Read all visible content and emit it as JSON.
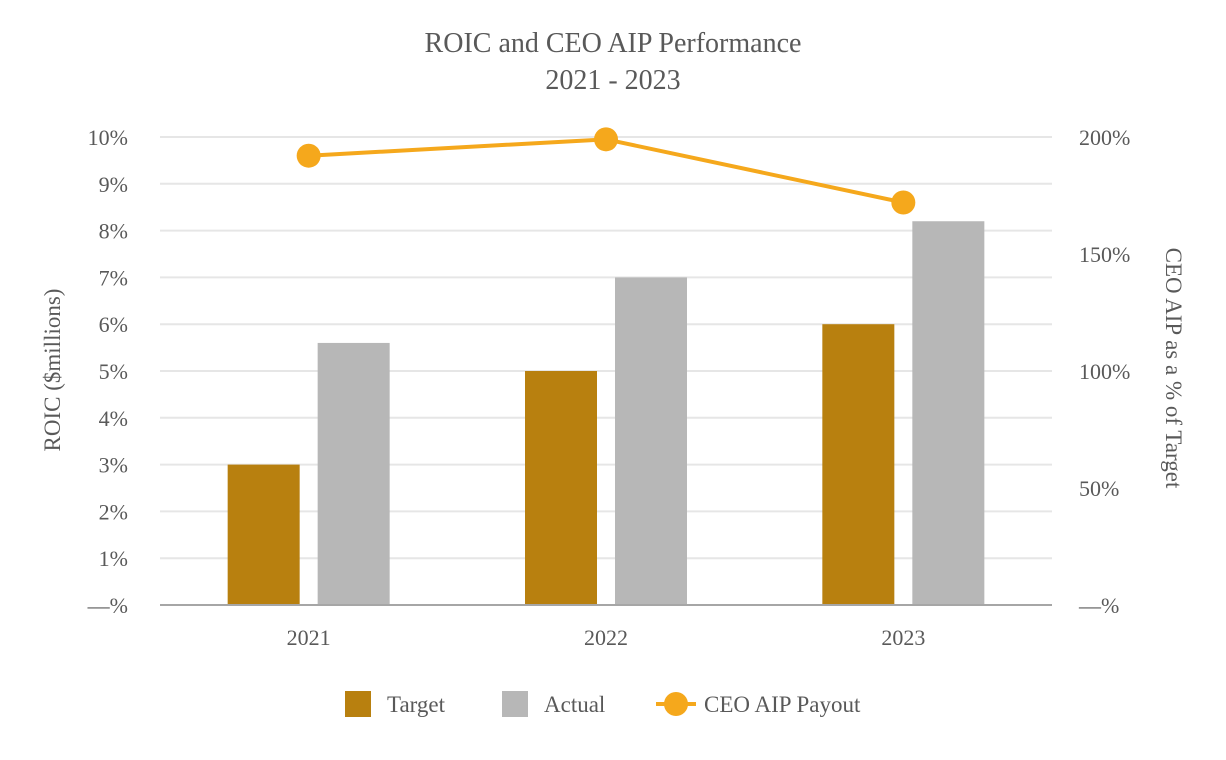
{
  "chart_data": {
    "type": "bar",
    "title": "ROIC and CEO AIP Performance",
    "subtitle": "2021 - 2023",
    "categories": [
      "2021",
      "2022",
      "2023"
    ],
    "ylabel": "ROIC ($millions)",
    "y2label": "CEO AIP as a % of Target",
    "ylim": [
      0,
      10
    ],
    "y2lim": [
      0,
      200
    ],
    "yticks": [
      {
        "value": 0,
        "label": "—%"
      },
      {
        "value": 1,
        "label": "1%"
      },
      {
        "value": 2,
        "label": "2%"
      },
      {
        "value": 3,
        "label": "3%"
      },
      {
        "value": 4,
        "label": "4%"
      },
      {
        "value": 5,
        "label": "5%"
      },
      {
        "value": 6,
        "label": "6%"
      },
      {
        "value": 7,
        "label": "7%"
      },
      {
        "value": 8,
        "label": "8%"
      },
      {
        "value": 9,
        "label": "9%"
      },
      {
        "value": 10,
        "label": "10%"
      }
    ],
    "y2ticks": [
      {
        "value": 0,
        "label": "—%"
      },
      {
        "value": 50,
        "label": "50%"
      },
      {
        "value": 100,
        "label": "100%"
      },
      {
        "value": 150,
        "label": "150%"
      },
      {
        "value": 200,
        "label": "200%"
      }
    ],
    "series": [
      {
        "name": "Target",
        "kind": "bar",
        "axis": "left",
        "color": "#b8800f",
        "values": [
          3.0,
          5.0,
          6.0
        ]
      },
      {
        "name": "Actual",
        "kind": "bar",
        "axis": "left",
        "color": "#b7b7b7",
        "values": [
          5.6,
          7.0,
          8.2
        ]
      },
      {
        "name": "CEO AIP Payout",
        "kind": "line",
        "axis": "right",
        "color": "#f5a81c",
        "values": [
          192,
          199,
          172
        ]
      }
    ],
    "grid": true,
    "legend": "bottom"
  }
}
